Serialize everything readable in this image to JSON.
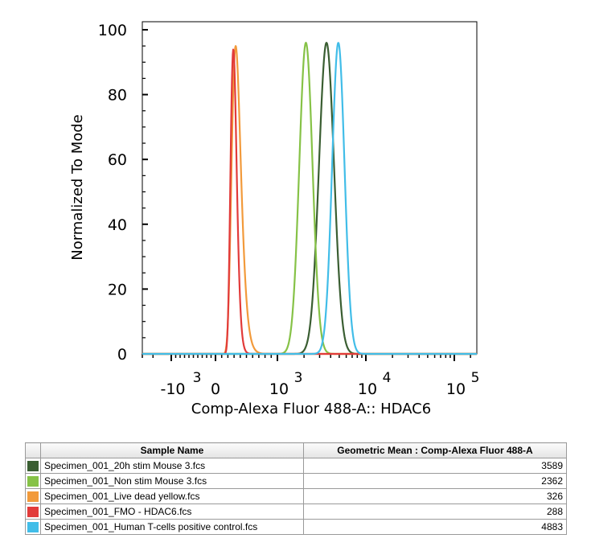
{
  "chart_data": {
    "type": "area",
    "ylabel": "Normalized To Mode",
    "xlabel": "Comp-Alexa Fluor 488-A:: HDAC6",
    "y_ticks": [
      "0",
      "20",
      "40",
      "60",
      "80",
      "100"
    ],
    "y_range": [
      0,
      100
    ],
    "x_scale": "biexponential",
    "x_range": [
      -3000,
      262144
    ],
    "x_ticks": [
      {
        "value": -1000,
        "base": "-10",
        "exp": "3"
      },
      {
        "value": 0,
        "base": "0",
        "exp": ""
      },
      {
        "value": 1000,
        "base": "10",
        "exp": "3"
      },
      {
        "value": 10000,
        "base": "10",
        "exp": "4"
      },
      {
        "value": 100000,
        "base": "10",
        "exp": "5"
      }
    ],
    "series": [
      {
        "color": "#3a5e32",
        "geo_mean": 3589,
        "peak_x": 3589,
        "peak_y": 96,
        "spread": 0.085
      },
      {
        "color": "#86c247",
        "geo_mean": 2362,
        "peak_x": 2100,
        "peak_y": 96,
        "spread": 0.075
      },
      {
        "color": "#f29a3b",
        "geo_mean": 326,
        "peak_x": 326,
        "peak_y": 95,
        "spread": 0.1
      },
      {
        "color": "#e23b3a",
        "geo_mean": 288,
        "peak_x": 288,
        "peak_y": 94,
        "spread": 0.075
      },
      {
        "color": "#41bde8",
        "geo_mean": 4883,
        "peak_x": 4883,
        "peak_y": 96,
        "spread": 0.07
      }
    ]
  },
  "table": {
    "headers": [
      "",
      "Sample Name",
      "Geometric Mean : Comp-Alexa Fluor 488-A"
    ],
    "rows": [
      {
        "color": "#3a5e32",
        "name": "Specimen_001_20h stim Mouse 3.fcs",
        "value": "3589"
      },
      {
        "color": "#86c247",
        "name": "Specimen_001_Non stim Mouse 3.fcs",
        "value": "2362"
      },
      {
        "color": "#f29a3b",
        "name": "Specimen_001_Live dead yellow.fcs",
        "value": "326"
      },
      {
        "color": "#e23b3a",
        "name": "Specimen_001_FMO - HDAC6.fcs",
        "value": "288"
      },
      {
        "color": "#41bde8",
        "name": "Specimen_001_Human T-cells positive control.fcs",
        "value": "4883"
      }
    ]
  }
}
